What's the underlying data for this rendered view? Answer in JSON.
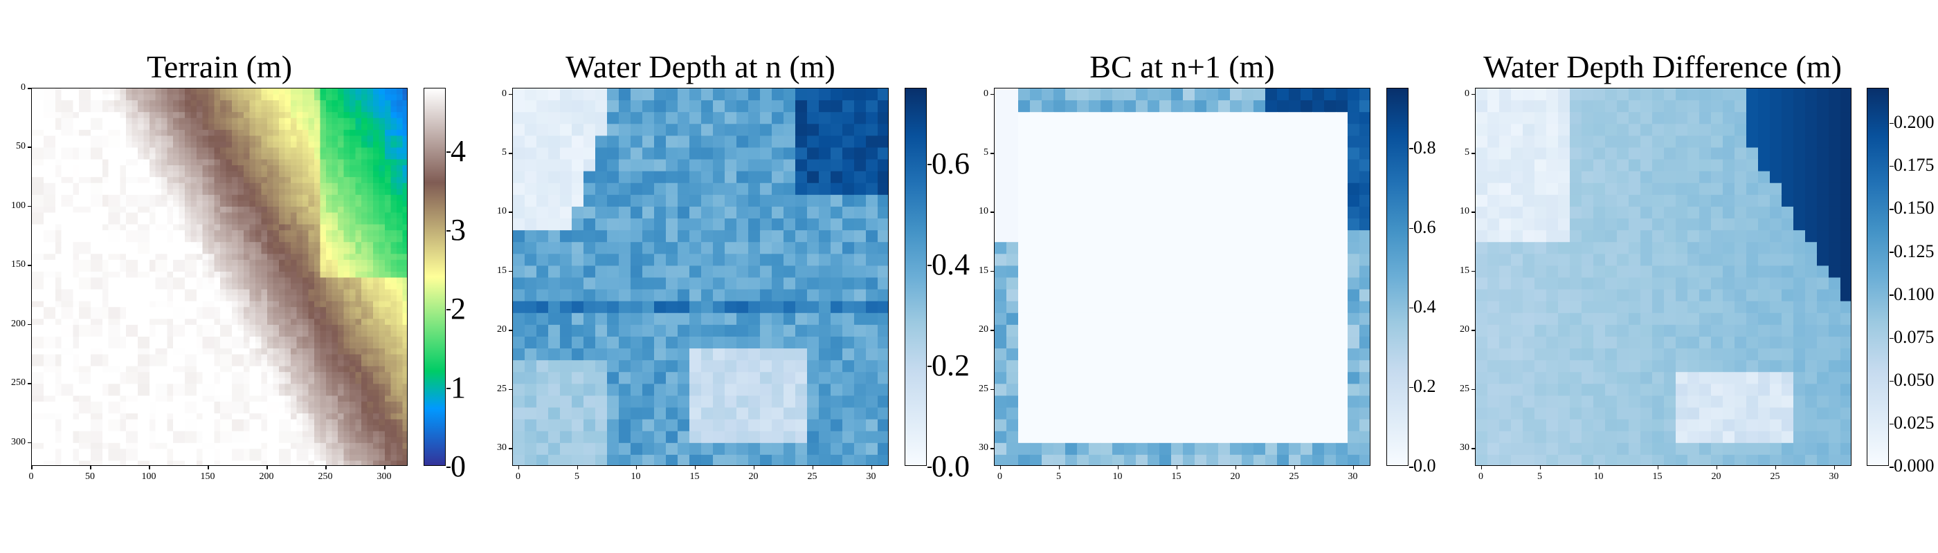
{
  "chart_data": [
    {
      "type": "heatmap",
      "title": "Terrain (m)",
      "grid_size": 320,
      "x_ticks": [
        "0",
        "50",
        "100",
        "150",
        "200",
        "250",
        "300"
      ],
      "y_ticks": [
        "0",
        "50",
        "100",
        "150",
        "200",
        "250",
        "300"
      ],
      "colormap": "terrain",
      "colorbar_ticks": [
        "0",
        "1",
        "2",
        "3",
        "4"
      ],
      "colorbar_range": [
        0,
        4.8
      ]
    },
    {
      "type": "heatmap",
      "title": "Water Depth at n (m)",
      "grid_size": 32,
      "x_ticks": [
        "0",
        "5",
        "10",
        "15",
        "20",
        "25",
        "30"
      ],
      "y_ticks": [
        "0",
        "5",
        "10",
        "15",
        "20",
        "25",
        "30"
      ],
      "colormap": "Blues",
      "colorbar_ticks": [
        "0.0",
        "0.2",
        "0.4",
        "0.6"
      ],
      "colorbar_range": [
        0,
        0.75
      ]
    },
    {
      "type": "heatmap",
      "title": "BC at n+1 (m)",
      "grid_size": 32,
      "x_ticks": [
        "0",
        "5",
        "10",
        "15",
        "20",
        "25",
        "30"
      ],
      "y_ticks": [
        "0",
        "5",
        "10",
        "15",
        "20",
        "25",
        "30"
      ],
      "colormap": "Blues",
      "colorbar_ticks": [
        "0.0",
        "0.2",
        "0.4",
        "0.6",
        "0.8"
      ],
      "colorbar_range": [
        0,
        0.95
      ]
    },
    {
      "type": "heatmap",
      "title": "Water Depth Difference (m)",
      "grid_size": 32,
      "x_ticks": [
        "0",
        "5",
        "10",
        "15",
        "20",
        "25",
        "30"
      ],
      "y_ticks": [
        "0",
        "5",
        "10",
        "15",
        "20",
        "25",
        "30"
      ],
      "colormap": "Blues",
      "colorbar_ticks": [
        "0.000",
        "0.025",
        "0.050",
        "0.075",
        "0.100",
        "0.125",
        "0.150",
        "0.175",
        "0.200"
      ],
      "colorbar_range": [
        0,
        0.22
      ]
    }
  ]
}
